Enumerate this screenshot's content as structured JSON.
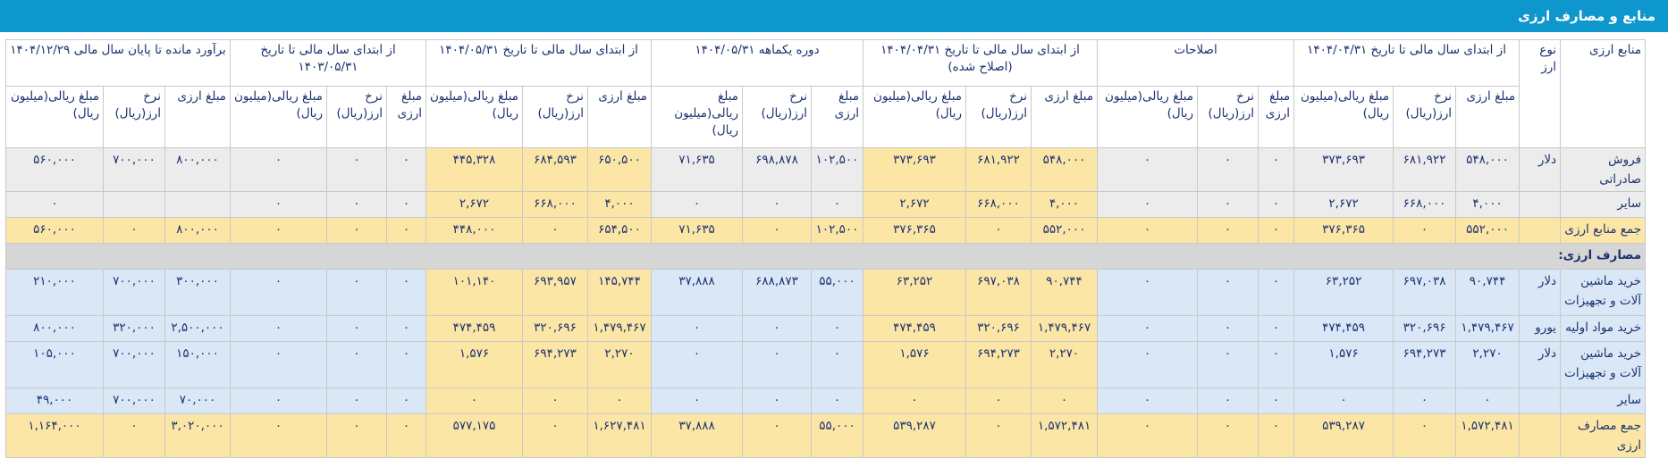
{
  "header": {
    "title": "منابع و مصارف ارزی"
  },
  "table": {
    "head": {
      "source_label": "منابع ارزی",
      "currency_label": "نوع ارز"
    },
    "groups": [
      {
        "title": "از ابتدای سال مالی تا تاریخ ۱۴۰۴/۰۴/۳۱",
        "columns": [
          "مبلغ ارزی",
          "نرخ ارز(ریال)",
          "مبلغ ریالی(میلیون ریال)"
        ]
      },
      {
        "title": "اصلاحات",
        "columns": [
          "مبلغ ارزی",
          "نرخ ارز(ریال)",
          "مبلغ ریالی(میلیون ریال)"
        ]
      },
      {
        "title": "از ابتدای سال مالی تا تاریخ ۱۴۰۴/۰۴/۳۱ (اصلاح شده)",
        "columns": [
          "مبلغ ارزی",
          "نرخ ارز(ریال)",
          "مبلغ ریالی(میلیون ریال)"
        ]
      },
      {
        "title": "دوره یکماهه ۱۴۰۴/۰۵/۳۱",
        "columns": [
          "مبلغ ارزی",
          "نرخ ارز(ریال)",
          "مبلغ ریالی(میلیون ریال)"
        ]
      },
      {
        "title": "از ابتدای سال مالی تا تاریخ ۱۴۰۴/۰۵/۳۱",
        "columns": [
          "مبلغ ارزی",
          "نرخ ارز(ریال)",
          "مبلغ ریالی(میلیون ریال)"
        ]
      },
      {
        "title": "از ابتدای سال مالی تا تاریخ ۱۴۰۳/۰۵/۳۱",
        "columns": [
          "مبلغ ارزی",
          "نرخ ارز(ریال)",
          "مبلغ ریالی(میلیون ریال)"
        ]
      },
      {
        "title": "برآورد مانده تا پایان سال مالی ۱۴۰۴/۱۲/۲۹",
        "columns": [
          "مبلغ ارزی",
          "نرخ ارز(ریال)",
          "مبلغ ریالی(میلیون ریال)"
        ]
      }
    ],
    "sources": [
      {
        "label": "فروش صادراتی",
        "currency": "دلار",
        "cells": [
          "۵۴۸,۰۰۰",
          "۶۸۱,۹۲۲",
          "۳۷۳,۶۹۳",
          "۰",
          "۰",
          "۰",
          "۵۴۸,۰۰۰",
          "۶۸۱,۹۲۲",
          "۳۷۳,۶۹۳",
          "۱۰۲,۵۰۰",
          "۶۹۸,۸۷۸",
          "۷۱,۶۳۵",
          "۶۵۰,۵۰۰",
          "۶۸۴,۵۹۳",
          "۴۴۵,۳۲۸",
          "۰",
          "۰",
          "۰",
          "۸۰۰,۰۰۰",
          "۷۰۰,۰۰۰",
          "۵۶۰,۰۰۰"
        ]
      },
      {
        "label": "سایر",
        "currency": null,
        "cells": [
          "۴,۰۰۰",
          "۶۶۸,۰۰۰",
          "۲,۶۷۲",
          "۰",
          "۰",
          "۰",
          "۴,۰۰۰",
          "۶۶۸,۰۰۰",
          "۲,۶۷۲",
          "۰",
          "۰",
          "۰",
          "۴,۰۰۰",
          "۶۶۸,۰۰۰",
          "۲,۶۷۲",
          "۰",
          "۰",
          "۰",
          null,
          null,
          "۰"
        ]
      },
      {
        "label": "جمع منابع ارزی",
        "currency": null,
        "cells": [
          "۵۵۲,۰۰۰",
          "۰",
          "۳۷۶,۳۶۵",
          "۰",
          "۰",
          "۰",
          "۵۵۲,۰۰۰",
          "۰",
          "۳۷۶,۳۶۵",
          "۱۰۲,۵۰۰",
          "۰",
          "۷۱,۶۳۵",
          "۶۵۴,۵۰۰",
          "۰",
          "۴۴۸,۰۰۰",
          "۰",
          "۰",
          "۰",
          "۸۰۰,۰۰۰",
          "۰",
          "۵۶۰,۰۰۰"
        ]
      }
    ],
    "uses_title": "مصارف ارزی:",
    "uses": [
      {
        "label": "خرید ماشین آلات و تجهیزات",
        "currency": "دلار",
        "cells": [
          "۹۰,۷۴۴",
          "۶۹۷,۰۳۸",
          "۶۳,۲۵۲",
          "۰",
          "۰",
          "۰",
          "۹۰,۷۴۴",
          "۶۹۷,۰۳۸",
          "۶۳,۲۵۲",
          "۵۵,۰۰۰",
          "۶۸۸,۸۷۳",
          "۳۷,۸۸۸",
          "۱۴۵,۷۴۴",
          "۶۹۳,۹۵۷",
          "۱۰۱,۱۴۰",
          "۰",
          "۰",
          "۰",
          "۳۰۰,۰۰۰",
          "۷۰۰,۰۰۰",
          "۲۱۰,۰۰۰"
        ]
      },
      {
        "label": "خرید مواد اولیه",
        "currency": "یورو",
        "cells": [
          "۱,۴۷۹,۴۶۷",
          "۳۲۰,۶۹۶",
          "۴۷۴,۴۵۹",
          "۰",
          "۰",
          "۰",
          "۱,۴۷۹,۴۶۷",
          "۳۲۰,۶۹۶",
          "۴۷۴,۴۵۹",
          "۰",
          "۰",
          "۰",
          "۱,۴۷۹,۴۶۷",
          "۳۲۰,۶۹۶",
          "۴۷۴,۴۵۹",
          "۰",
          "۰",
          "۰",
          "۲,۵۰۰,۰۰۰",
          "۳۲۰,۰۰۰",
          "۸۰۰,۰۰۰"
        ]
      },
      {
        "label": "خرید ماشین آلات و تجهیزات",
        "currency": "دلار",
        "cells": [
          "۲,۲۷۰",
          "۶۹۴,۲۷۳",
          "۱,۵۷۶",
          "۰",
          "۰",
          "۰",
          "۲,۲۷۰",
          "۶۹۴,۲۷۳",
          "۱,۵۷۶",
          "۰",
          "۰",
          "۰",
          "۲,۲۷۰",
          "۶۹۴,۲۷۳",
          "۱,۵۷۶",
          "۰",
          "۰",
          "۰",
          "۱۵۰,۰۰۰",
          "۷۰۰,۰۰۰",
          "۱۰۵,۰۰۰"
        ]
      },
      {
        "label": "سایر",
        "currency": null,
        "cells": [
          "۰",
          "۰",
          "۰",
          "۰",
          "۰",
          "۰",
          "۰",
          "۰",
          "۰",
          "۰",
          "۰",
          "۰",
          "۰",
          "۰",
          "۰",
          "۰",
          "۰",
          "۰",
          "۷۰,۰۰۰",
          "۷۰۰,۰۰۰",
          "۴۹,۰۰۰"
        ]
      },
      {
        "label": "جمع مصارف ارزی",
        "currency": null,
        "cells": [
          "۱,۵۷۲,۴۸۱",
          "۰",
          "۵۳۹,۲۸۷",
          "۰",
          "۰",
          "۰",
          "۱,۵۷۲,۴۸۱",
          "۰",
          "۵۳۹,۲۸۷",
          "۵۵,۰۰۰",
          "۰",
          "۳۷,۸۸۸",
          "۱,۶۲۷,۴۸۱",
          "۰",
          "۵۷۷,۱۷۵",
          "۰",
          "۰",
          "۰",
          "۳,۰۲۰,۰۰۰",
          "۰",
          "۱,۱۶۴,۰۰۰"
        ]
      }
    ]
  }
}
